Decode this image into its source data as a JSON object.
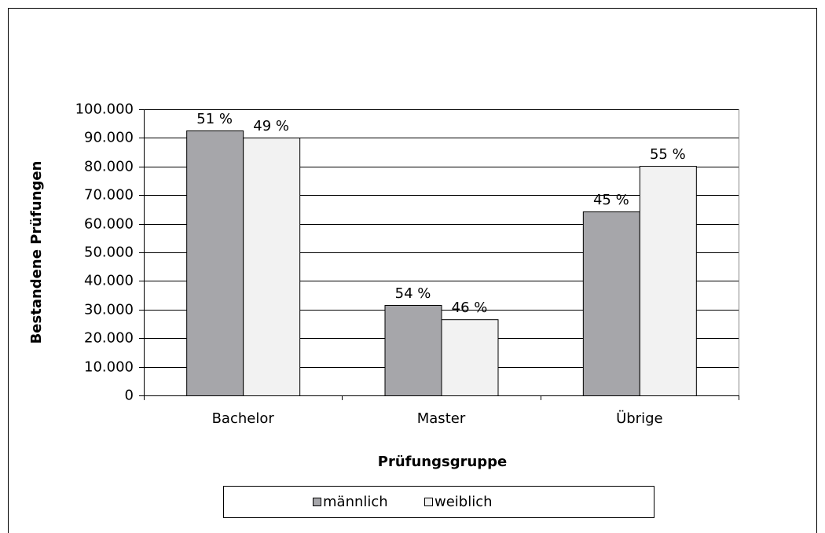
{
  "chart_data": {
    "type": "bar",
    "categories": [
      "Bachelor",
      "Master",
      "Übrige"
    ],
    "series": [
      {
        "name": "männlich",
        "color": "#a6a6aa",
        "values": [
          92600,
          31600,
          64300
        ],
        "share_labels": [
          "51 %",
          "54 %",
          "45 %"
        ]
      },
      {
        "name": "weiblich",
        "color": "#f2f2f2",
        "values": [
          90100,
          26600,
          80200
        ],
        "share_labels": [
          "49 %",
          "46 %",
          "55 %"
        ]
      }
    ],
    "y_label": "Bestandene Prüfungen",
    "x_label": "Prüfungsgruppe",
    "ylim": [
      0,
      100000
    ],
    "yticks": [
      0,
      {
        "value": 10000,
        "label": "10.000"
      },
      {
        "value": 20000,
        "label": "20.000"
      },
      {
        "value": 30000,
        "label": "30.000"
      },
      {
        "value": 40000,
        "label": "40.000"
      },
      {
        "value": 50000,
        "label": "50.000"
      },
      {
        "value": 60000,
        "label": "60.000"
      },
      {
        "value": 70000,
        "label": "70.000"
      },
      {
        "value": 80000,
        "label": "80.000"
      },
      {
        "value": 90000,
        "label": "90.000"
      },
      {
        "value": 100000,
        "label": "100.000"
      }
    ],
    "grid": true,
    "legend": "bottom"
  }
}
